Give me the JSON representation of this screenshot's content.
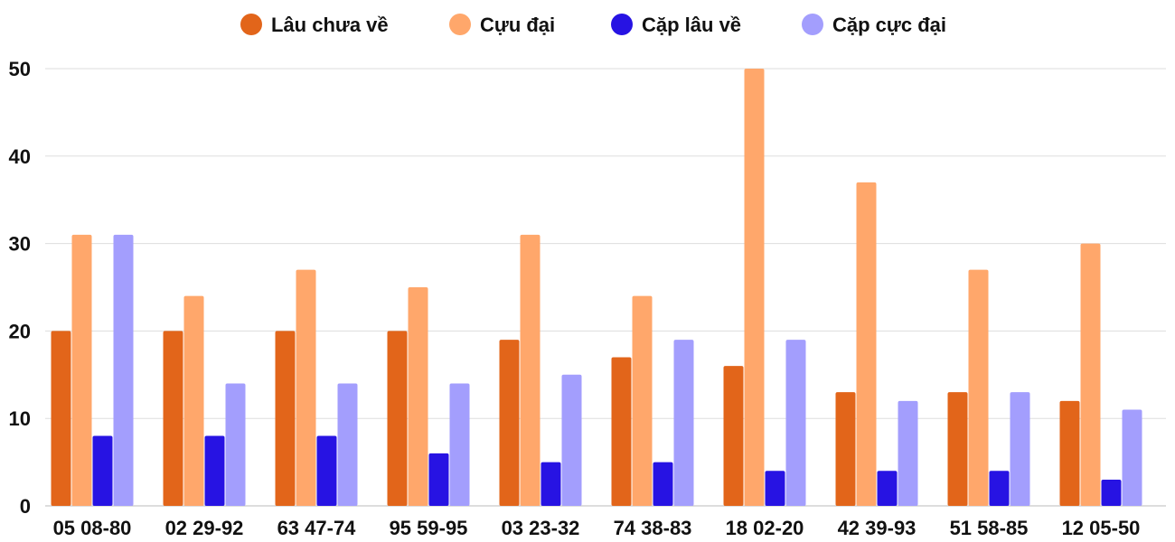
{
  "chart_data": {
    "type": "bar",
    "title": "",
    "xlabel": "",
    "ylabel": "",
    "ylim": [
      0,
      50
    ],
    "yticks": [
      0,
      10,
      20,
      30,
      40,
      50
    ],
    "grid": true,
    "legend_position": "top",
    "categories": [
      "05 08-80",
      "02 29-92",
      "63 47-74",
      "95 59-95",
      "03 23-32",
      "74 38-83",
      "18 02-20",
      "42 39-93",
      "51 58-85",
      "12 05-50"
    ],
    "series": [
      {
        "name": "Lâu chưa về",
        "color": "#e2651a",
        "values": [
          20,
          20,
          20,
          20,
          19,
          17,
          16,
          13,
          13,
          12
        ]
      },
      {
        "name": "Cựu đại",
        "color": "#ffa76b",
        "values": [
          31,
          24,
          27,
          25,
          31,
          24,
          50,
          37,
          27,
          30
        ]
      },
      {
        "name": "Cặp lâu về",
        "color": "#2713e3",
        "values": [
          8,
          8,
          8,
          6,
          5,
          5,
          4,
          4,
          4,
          3
        ]
      },
      {
        "name": "Cặp cực đại",
        "color": "#a39efd",
        "values": [
          31,
          14,
          14,
          14,
          15,
          19,
          19,
          12,
          13,
          11
        ]
      }
    ]
  }
}
